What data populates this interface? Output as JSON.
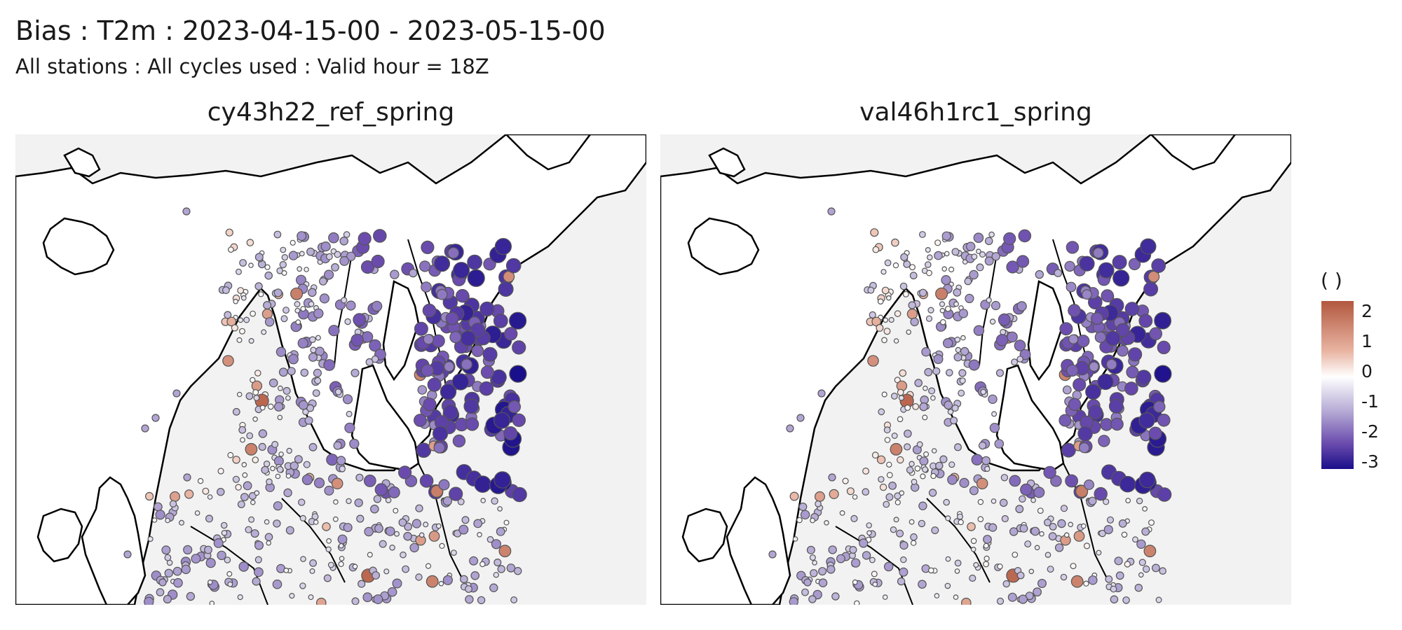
{
  "title": "Bias : T2m : 2023-04-15-00 - 2023-05-15-00",
  "subtitle": "All stations : All cycles used : Valid hour = 18Z",
  "panels": [
    {
      "label": "cy43h22_ref_spring"
    },
    {
      "label": "val46h1rc1_spring"
    }
  ],
  "legend": {
    "title": "( )",
    "ticks": [
      "2",
      "1",
      "0",
      "-1",
      "-2",
      "-3"
    ],
    "tick_values": [
      2,
      1,
      0,
      -1,
      -2,
      -3
    ],
    "range": [
      -3.3,
      2.4
    ],
    "colors": {
      "high": "#b2583f",
      "zero": "#ffffff",
      "low": "#1a0f8a"
    }
  },
  "colors": {
    "sea": "#ffffff",
    "land_background": "#f2f2f2",
    "coast": "#000000"
  }
}
